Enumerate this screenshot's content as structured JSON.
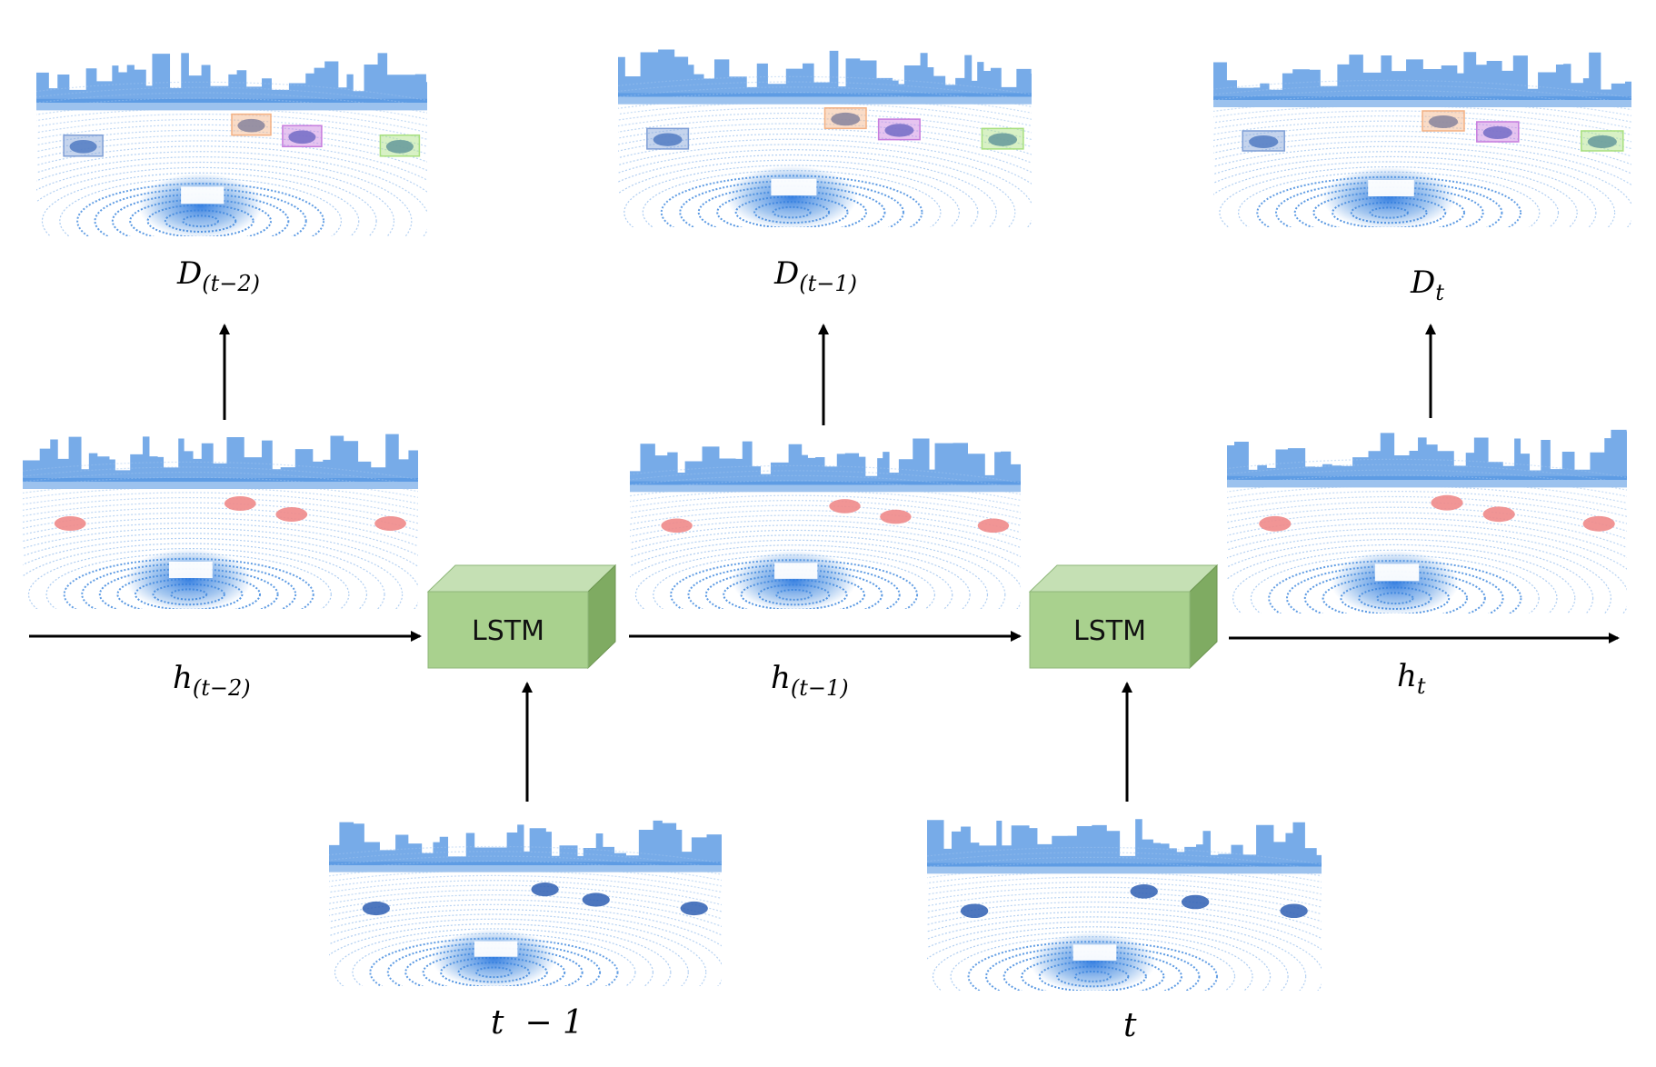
{
  "lstm_label": "LSTM",
  "labels": {
    "D_tm2": {
      "main": "D",
      "sub": "(t−2)"
    },
    "D_tm1": {
      "main": "D",
      "sub": "(t−1)"
    },
    "D_t": {
      "main": "D",
      "sub": "t"
    },
    "h_tm2": {
      "main": "h",
      "sub": "(t−2)"
    },
    "h_tm1": {
      "main": "h",
      "sub": "(t−1)"
    },
    "h_t": {
      "main": "h",
      "sub": "t"
    },
    "input_tm1": "t  − 1",
    "input_t": "t"
  },
  "colors": {
    "lidar_point": "#4a8fe0",
    "lidar_point_light": "#9cc2ee",
    "lstm_front": "#a9d18e",
    "lstm_top": "#c5e0b4",
    "lstm_side": "#7fab62",
    "car_feature": "#f08a8a",
    "arrow": "#000000",
    "box_blue": "#7f9fd6",
    "box_orange": "#f4b183",
    "box_purple": "#c77dde",
    "box_green": "#a8e07f"
  },
  "scenes": [
    {
      "name": "detection-scene-t-minus-2",
      "kind": "detection"
    },
    {
      "name": "detection-scene-t-minus-1",
      "kind": "detection"
    },
    {
      "name": "detection-scene-t",
      "kind": "detection"
    },
    {
      "name": "feature-scene-t-minus-2",
      "kind": "feature"
    },
    {
      "name": "feature-scene-t-minus-1",
      "kind": "feature"
    },
    {
      "name": "feature-scene-t",
      "kind": "feature"
    },
    {
      "name": "input-scene-t-minus-1",
      "kind": "input"
    },
    {
      "name": "input-scene-t",
      "kind": "input"
    }
  ]
}
